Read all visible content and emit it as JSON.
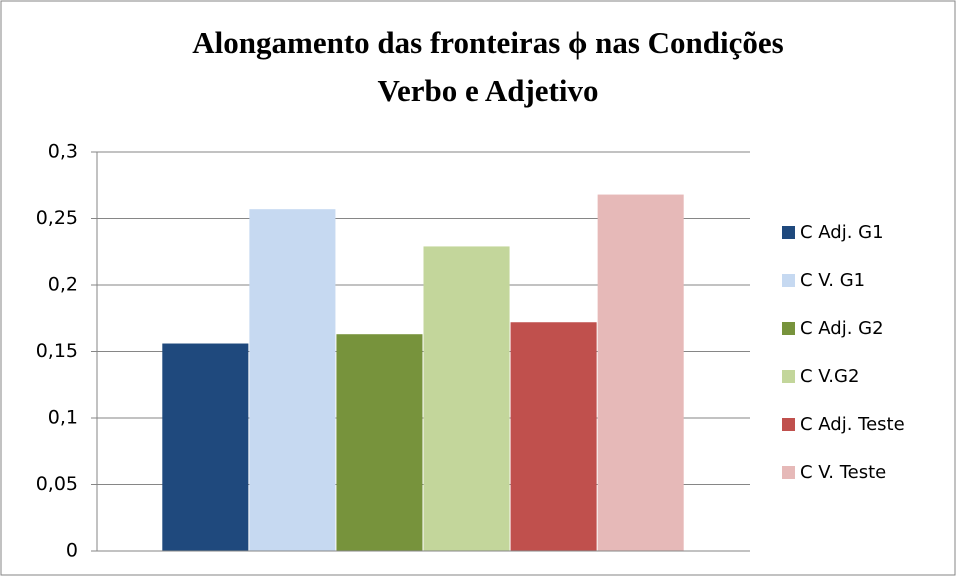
{
  "chart_data": {
    "type": "bar",
    "title": [
      "Alongamento das fronteiras ϕ nas Condições",
      "Verbo e Adjetivo"
    ],
    "categories": [
      null
    ],
    "series": [
      {
        "name": "C Adj. G1",
        "color": "#1f497d",
        "values": [
          0.156
        ]
      },
      {
        "name": "C V. G1",
        "color": "#c6d9f1",
        "values": [
          0.257
        ]
      },
      {
        "name": "C Adj. G2",
        "color": "#77933c",
        "values": [
          0.163
        ]
      },
      {
        "name": "C V.G2",
        "color": "#c3d69b",
        "values": [
          0.229
        ]
      },
      {
        "name": "C Adj. Teste",
        "color": "#c0504d",
        "values": [
          0.172
        ]
      },
      {
        "name": "C V. Teste",
        "color": "#e6b9b8",
        "values": [
          0.268
        ]
      }
    ],
    "ylim": [
      0,
      0.3
    ],
    "yticks": [
      0,
      {
        "value": 0.05,
        "label": "0,05"
      },
      {
        "value": 0.1,
        "label": "0,1"
      },
      {
        "value": 0.15,
        "label": "0,15"
      },
      {
        "value": 0.2,
        "label": "0,2"
      },
      {
        "value": 0.25,
        "label": "0,25"
      },
      {
        "value": 0.3,
        "label": "0,3"
      }
    ],
    "grid": true,
    "legend": "right"
  }
}
